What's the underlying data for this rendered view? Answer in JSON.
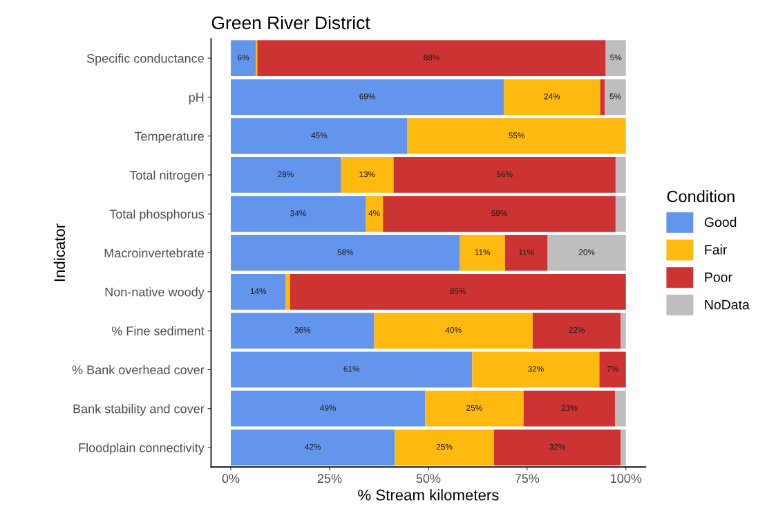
{
  "chart_data": {
    "type": "bar",
    "orientation": "horizontal",
    "stacked": true,
    "title": "Green River District",
    "xlabel": "% Stream kilometers",
    "ylabel": "Indicator",
    "legend_title": "Condition",
    "legend": "right",
    "grid": false,
    "categories": [
      "Specific conductance",
      "pH",
      "Temperature",
      "Total nitrogen",
      "Total phosphorus",
      "Macroinvertebrate",
      "Non-native woody",
      "% Fine sediment",
      "% Bank overhead cover",
      "Bank stability and cover",
      "Floodplain connectivity"
    ],
    "xlim": [
      -5,
      105
    ],
    "xticks": [
      {
        "value": 0,
        "label": "0%"
      },
      {
        "value": 25,
        "label": "25%"
      },
      {
        "value": 50,
        "label": "50%"
      },
      {
        "value": 75,
        "label": "75%"
      },
      {
        "value": 100,
        "label": "100%"
      }
    ],
    "series": [
      {
        "name": "Good",
        "color": "#6495ed",
        "values": [
          6.3,
          69.1,
          44.7,
          27.8,
          34.1,
          58.0,
          13.9,
          36.3,
          61.1,
          49.2,
          41.5
        ],
        "value_labels": [
          "6%",
          "69%",
          "45%",
          "28%",
          "34%",
          "58%",
          "14%",
          "36%",
          "61%",
          "49%",
          "42%"
        ]
      },
      {
        "name": "Fair",
        "color": "#ffb90f",
        "values": [
          0.4,
          24.4,
          55.3,
          13.4,
          4.4,
          11.4,
          1.1,
          40.1,
          32.2,
          24.9,
          25.1
        ],
        "value_labels": [
          null,
          "24%",
          "55%",
          "13%",
          "4%",
          "11%",
          null,
          "40%",
          "32%",
          "25%",
          "25%"
        ]
      },
      {
        "name": "Poor",
        "color": "#cd3333",
        "values": [
          88.2,
          1.2,
          0,
          56.2,
          58.9,
          10.8,
          85.0,
          22.3,
          6.7,
          23.2,
          32.1
        ],
        "value_labels": [
          "88%",
          null,
          null,
          "56%",
          "59%",
          "11%",
          "85%",
          "22%",
          "7%",
          "23%",
          "32%"
        ]
      },
      {
        "name": "NoData",
        "color": "#bebebe",
        "values": [
          5.1,
          5.3,
          0,
          2.6,
          2.6,
          19.8,
          0,
          1.3,
          0,
          2.7,
          1.3
        ],
        "value_labels": [
          "5%",
          "5%",
          null,
          null,
          null,
          "20%",
          null,
          null,
          null,
          null,
          null
        ]
      }
    ]
  }
}
